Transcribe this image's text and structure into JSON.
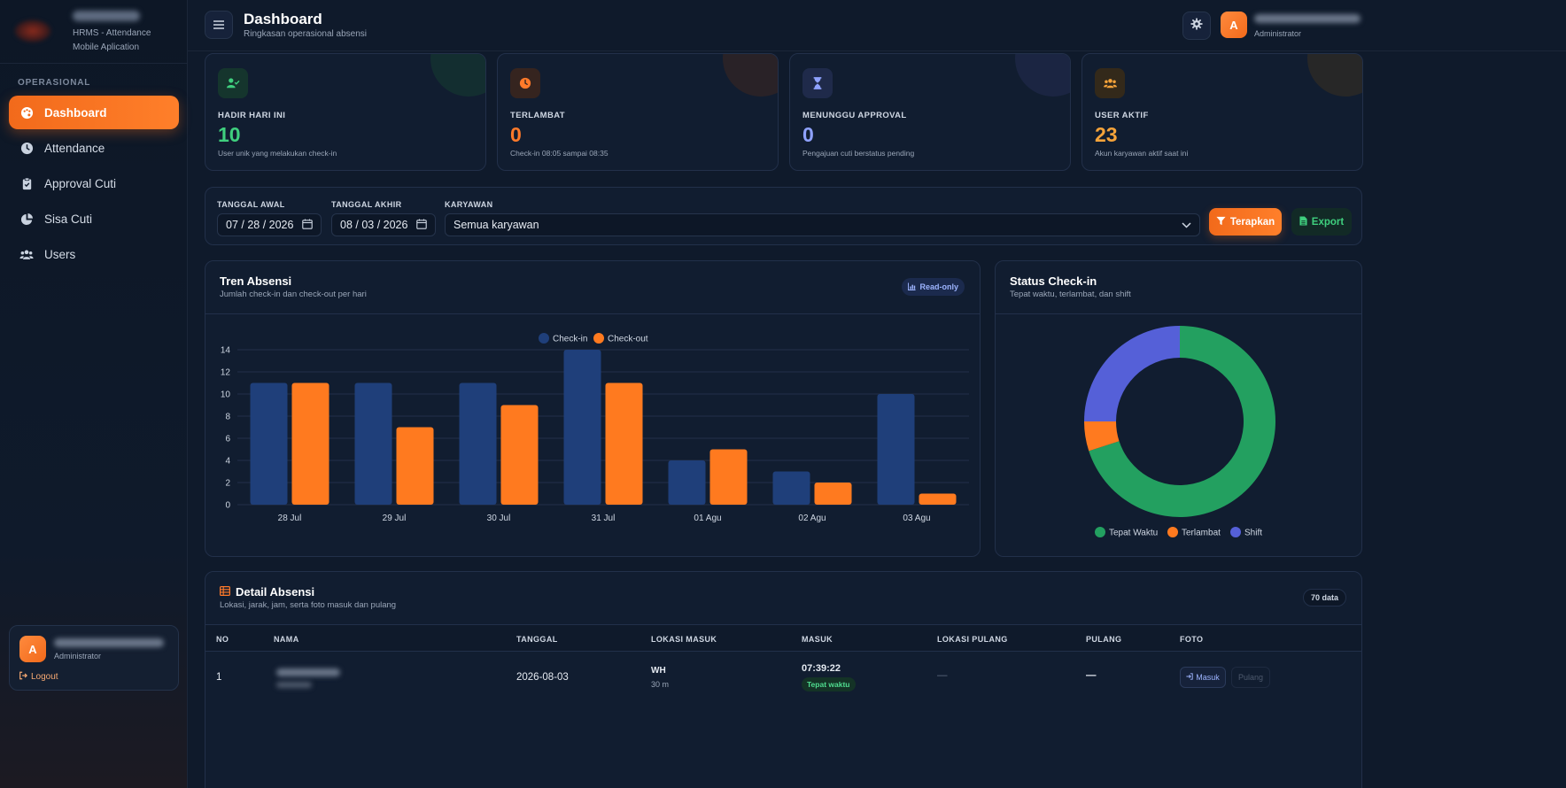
{
  "brand": {
    "subtitle": "HRMS - Attendance Mobile Aplication"
  },
  "sidebar": {
    "section_label": "OPERASIONAL",
    "items": [
      {
        "label": "Dashboard",
        "icon": "palette-icon",
        "active": true
      },
      {
        "label": "Attendance",
        "icon": "clock-icon",
        "active": false
      },
      {
        "label": "Approval Cuti",
        "icon": "clipboard-check-icon",
        "active": false
      },
      {
        "label": "Sisa Cuti",
        "icon": "pie-chart-icon",
        "active": false
      },
      {
        "label": "Users",
        "icon": "users-icon",
        "active": false
      }
    ],
    "user": {
      "initial": "A",
      "role": "Administrator",
      "logout_label": "Logout"
    }
  },
  "header": {
    "title": "Dashboard",
    "subtitle": "Ringkasan operasional absensi",
    "user": {
      "initial": "A",
      "role": "Administrator"
    }
  },
  "stats": [
    {
      "label": "HADIR HARI INI",
      "value": "10",
      "desc": "User unik yang melakukan check-in",
      "color": "#3fcf7e",
      "icon": "user-check-icon"
    },
    {
      "label": "TERLAMBAT",
      "value": "0",
      "desc": "Check-in 08:05 sampai 08:35",
      "color": "#ff7a2a",
      "icon": "clock-icon"
    },
    {
      "label": "MENUNGGU APPROVAL",
      "value": "0",
      "desc": "Pengajuan cuti berstatus pending",
      "color": "#8fa2ff",
      "icon": "hourglass-icon"
    },
    {
      "label": "USER AKTIF",
      "value": "23",
      "desc": "Akun karyawan aktif saat ini",
      "color": "#f5a33a",
      "icon": "users-icon"
    }
  ],
  "filters": {
    "start_label": "TANGGAL AWAL",
    "start_value": "07 / 28 / 2026",
    "end_label": "TANGGAL AKHIR",
    "end_value": "08 / 03 / 2026",
    "employee_label": "KARYAWAN",
    "employee_value": "Semua karyawan",
    "apply_label": "Terapkan",
    "export_label": "Export"
  },
  "trend_panel": {
    "title": "Tren Absensi",
    "subtitle": "Jumlah check-in dan check-out per hari",
    "badge": "Read-only"
  },
  "status_panel": {
    "title": "Status Check-in",
    "subtitle": "Tepat waktu, terlambat, dan shift"
  },
  "chart_data": [
    {
      "type": "bar",
      "categories": [
        "28 Jul",
        "29 Jul",
        "30 Jul",
        "31 Jul",
        "01 Agu",
        "02 Agu",
        "03 Agu"
      ],
      "series": [
        {
          "name": "Check-in",
          "values": [
            11,
            11,
            11,
            14,
            4,
            3,
            10
          ],
          "color": "#1f3f7a"
        },
        {
          "name": "Check-out",
          "values": [
            11,
            7,
            9,
            11,
            5,
            2,
            1
          ],
          "color": "#ff7a1f"
        }
      ],
      "ylim": [
        0,
        14
      ],
      "yticks": [
        0,
        2,
        4,
        6,
        8,
        10,
        12,
        14
      ],
      "grid": true,
      "legend": "top-center"
    },
    {
      "type": "pie",
      "donut": true,
      "labels": [
        "Tepat Waktu",
        "Terlambat",
        "Shift"
      ],
      "values": [
        70,
        5,
        25
      ],
      "colors": [
        "#23a060",
        "#ff7a1f",
        "#5560d8"
      ],
      "legend": "bottom"
    }
  ],
  "table": {
    "title": "Detail Absensi",
    "subtitle": "Lokasi, jarak, jam, serta foto masuk dan pulang",
    "count_badge": "70 data",
    "columns": [
      "NO",
      "NAMA",
      "TANGGAL",
      "LOKASI MASUK",
      "MASUK",
      "LOKASI PULANG",
      "PULANG",
      "FOTO"
    ],
    "rows": [
      {
        "no": "1",
        "tanggal": "2026-08-03",
        "lokasi_masuk": "WH",
        "jarak_masuk": "30 m",
        "masuk": "07:39:22",
        "status": "Tepat waktu",
        "lokasi_pulang": "—",
        "pulang": "—",
        "foto_masuk": "Masuk",
        "foto_pulang": "Pulang"
      }
    ]
  }
}
